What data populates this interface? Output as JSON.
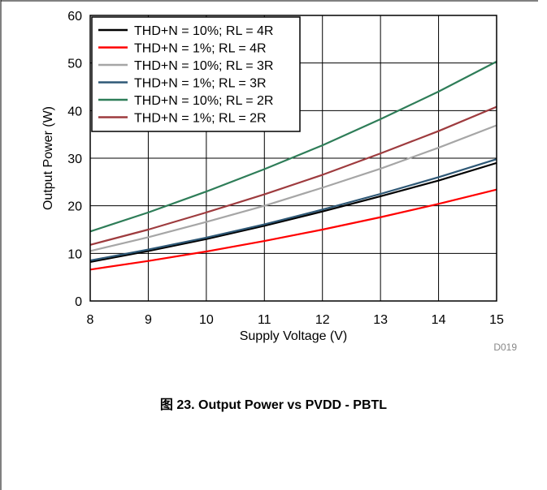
{
  "chart_data": {
    "type": "line",
    "xlabel": "Supply Voltage (V)",
    "ylabel": "Output Power (W)",
    "xlim": [
      8,
      15
    ],
    "ylim": [
      0,
      60
    ],
    "xticks": [
      "8",
      "9",
      "10",
      "11",
      "12",
      "13",
      "14",
      "15"
    ],
    "yticks": [
      "0",
      "10",
      "20",
      "30",
      "40",
      "50",
      "60"
    ],
    "grid": true,
    "legend_position": "top-left",
    "figure_code": "D019",
    "series": [
      {
        "name": "THD+N = 10%; RL = 4R",
        "color": "#000000",
        "x": [
          8,
          9,
          10,
          11,
          12,
          13,
          14,
          15
        ],
        "y": [
          8.2,
          10.5,
          13.0,
          15.8,
          18.8,
          22.0,
          25.3,
          29.0
        ]
      },
      {
        "name": "THD+N = 1%; RL = 4R",
        "color": "#ff0000",
        "x": [
          8,
          9,
          10,
          11,
          12,
          13,
          14,
          15
        ],
        "y": [
          6.6,
          8.4,
          10.4,
          12.6,
          15.0,
          17.6,
          20.4,
          23.4
        ]
      },
      {
        "name": "THD+N = 10%; RL = 3R",
        "color": "#a6a6a6",
        "x": [
          8,
          9,
          10,
          11,
          12,
          13,
          14,
          15
        ],
        "y": [
          10.5,
          13.4,
          16.6,
          20.0,
          23.8,
          27.8,
          32.2,
          36.9
        ]
      },
      {
        "name": "THD+N = 1%; RL = 3R",
        "color": "#2e5876",
        "x": [
          8,
          9,
          10,
          11,
          12,
          13,
          14,
          15
        ],
        "y": [
          8.5,
          10.8,
          13.3,
          16.1,
          19.2,
          22.5,
          26.0,
          29.8
        ]
      },
      {
        "name": "THD+N = 10%; RL = 2R",
        "color": "#2e7d58",
        "x": [
          8,
          9,
          10,
          11,
          12,
          13,
          14,
          15
        ],
        "y": [
          14.6,
          18.6,
          23.0,
          27.7,
          32.7,
          38.2,
          44.0,
          50.3
        ]
      },
      {
        "name": "THD+N = 1%; RL = 2R",
        "color": "#9e3b3e",
        "x": [
          8,
          9,
          10,
          11,
          12,
          13,
          14,
          15
        ],
        "y": [
          11.8,
          15.0,
          18.6,
          22.4,
          26.5,
          31.0,
          35.7,
          40.8
        ]
      }
    ]
  },
  "caption": "图 23. Output Power vs PVDD - PBTL"
}
